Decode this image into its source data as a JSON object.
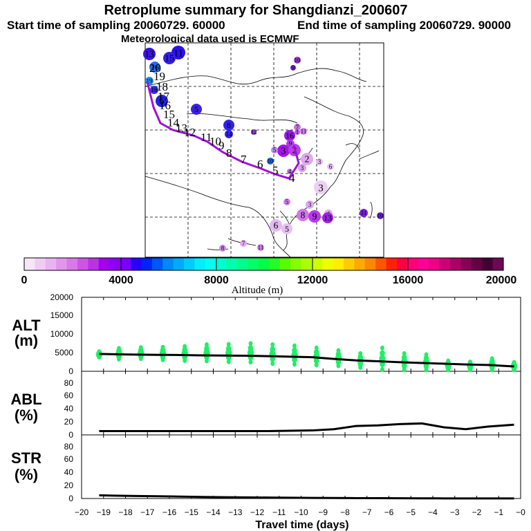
{
  "header": {
    "title": "Retroplume summary for Shangdianzi_200607",
    "start_label": "Start time of sampling 20060729. 60000",
    "end_label": "End time of sampling 20060729. 90000",
    "met_label": "Meteorological data used is ECMWF"
  },
  "colorbar": {
    "label": "Altitude (m)",
    "ticks": [
      "0",
      "4000",
      "8000",
      "12000",
      "16000",
      "20000"
    ],
    "colors": [
      "#f6e6f8",
      "#f0ccf4",
      "#e9b2f0",
      "#e196ec",
      "#d978e8",
      "#cc55e6",
      "#b833e6",
      "#a300ee",
      "#8c00f6",
      "#7a00ff",
      "#2a00ff",
      "#0022ff",
      "#0055ff",
      "#0088ff",
      "#00aaff",
      "#00ccff",
      "#00eeff",
      "#00ffee",
      "#00ffcc",
      "#00ffaa",
      "#00ff88",
      "#00ff66",
      "#00ff44",
      "#22ff22",
      "#55ff00",
      "#88ff00",
      "#aaff00",
      "#ccff00",
      "#eeff00",
      "#ffee00",
      "#ffcc00",
      "#ffaa00",
      "#ff8800",
      "#ff5500",
      "#ff2200",
      "#ff0044",
      "#ff0077",
      "#ff0099",
      "#ee0088",
      "#cc0077",
      "#aa0066",
      "#880055",
      "#660044",
      "#440033",
      "#6a0a55"
    ]
  },
  "map": {
    "trajectory_labels": [
      "20",
      "19",
      "18",
      "17",
      "16",
      "15",
      "14",
      "13",
      "12",
      "11",
      "10",
      "9",
      "8",
      "7",
      "6",
      "5",
      "4"
    ],
    "cluster_labels": [
      "13",
      "11",
      "15",
      "16",
      "19",
      "18",
      "10",
      "9",
      "6",
      "5",
      "8",
      "14",
      "12",
      "16",
      "7",
      "9",
      "11",
      "3",
      "2",
      "2",
      "5",
      "3",
      "6",
      "3",
      "4",
      "5",
      "3",
      "4",
      "8",
      "9",
      "13",
      "11",
      "10",
      "6",
      "5",
      "8",
      "7",
      "11",
      "3",
      "10",
      "1"
    ]
  },
  "panels": {
    "alt": {
      "label_top": "ALT",
      "label_bottom": "(m)",
      "yticks": [
        "20000",
        "15000",
        "10000",
        "5000",
        "0"
      ]
    },
    "abl": {
      "label_top": "ABL",
      "label_bottom": "(%)",
      "yticks": [
        "100",
        "80",
        "60",
        "40",
        "20",
        "0"
      ]
    },
    "str": {
      "label_top": "STR",
      "label_bottom": "(%)",
      "yticks": [
        "100",
        "80",
        "60",
        "40",
        "20",
        "0"
      ]
    }
  },
  "chart_data": {
    "type": "line",
    "title": "Retroplume summary for Shangdianzi_200607",
    "xlabel": "Travel time (days)",
    "xlim": [
      -20,
      0
    ],
    "xticks": [
      "−20",
      "−19",
      "−18",
      "−17",
      "−16",
      "−15",
      "−14",
      "−13",
      "−12",
      "−11",
      "−10",
      "−9",
      "−8",
      "−7",
      "−6",
      "−5",
      "−4",
      "−3",
      "−2",
      "−1",
      "−0"
    ],
    "x": [
      -19.2,
      -18.5,
      -17.5,
      -16.5,
      -15.5,
      -14.5,
      -13.5,
      -12.5,
      -11.5,
      -10.5,
      -9.5,
      -8.5,
      -7.5,
      -6.5,
      -5.5,
      -4.5,
      -3.5,
      -2.5,
      -1.5,
      -0.3
    ],
    "series": [
      {
        "name": "ALT mean altitude (m)",
        "ylim": [
          0,
          20000
        ],
        "values": [
          4700,
          4600,
          4500,
          4450,
          4400,
          4300,
          4250,
          4200,
          4100,
          3950,
          3800,
          3350,
          2950,
          2700,
          2450,
          2250,
          2050,
          1850,
          1700,
          1300
        ]
      },
      {
        "name": "ABL fraction (%)",
        "ylim": [
          0,
          100
        ],
        "values": [
          6,
          6,
          6,
          6,
          6,
          6,
          6,
          6,
          6,
          6.5,
          7,
          9,
          14,
          15,
          17,
          18,
          12,
          9,
          13,
          16
        ]
      },
      {
        "name": "STR fraction (%)",
        "ylim": [
          0,
          100
        ],
        "values": [
          5,
          4.5,
          4,
          3.5,
          3,
          2.5,
          2,
          1.8,
          1.5,
          1.2,
          1,
          0.8,
          0.6,
          0.5,
          0.4,
          0.3,
          0.2,
          0.1,
          0.1,
          0.1
        ]
      }
    ],
    "alt_cluster_points": {
      "x": [
        -19.2,
        -18.3,
        -17.3,
        -16.3,
        -15.3,
        -14.3,
        -13.3,
        -12.3,
        -11.3,
        -10.3,
        -9.3,
        -8.3,
        -7.3,
        -6.3,
        -5.3,
        -4.3,
        -3.3,
        -2.3,
        -1.3,
        -0.3
      ],
      "upper": [
        5300,
        6200,
        6400,
        6500,
        6700,
        7200,
        7300,
        7500,
        7200,
        6900,
        6300,
        5600,
        4800,
        6300,
        4800,
        4500,
        2800,
        2500,
        3400,
        2400
      ],
      "lower": [
        3800,
        3300,
        3400,
        3100,
        2900,
        2800,
        2600,
        2500,
        2100,
        1900,
        1700,
        1500,
        1000,
        500,
        400,
        400,
        400,
        400,
        400,
        400
      ]
    }
  }
}
